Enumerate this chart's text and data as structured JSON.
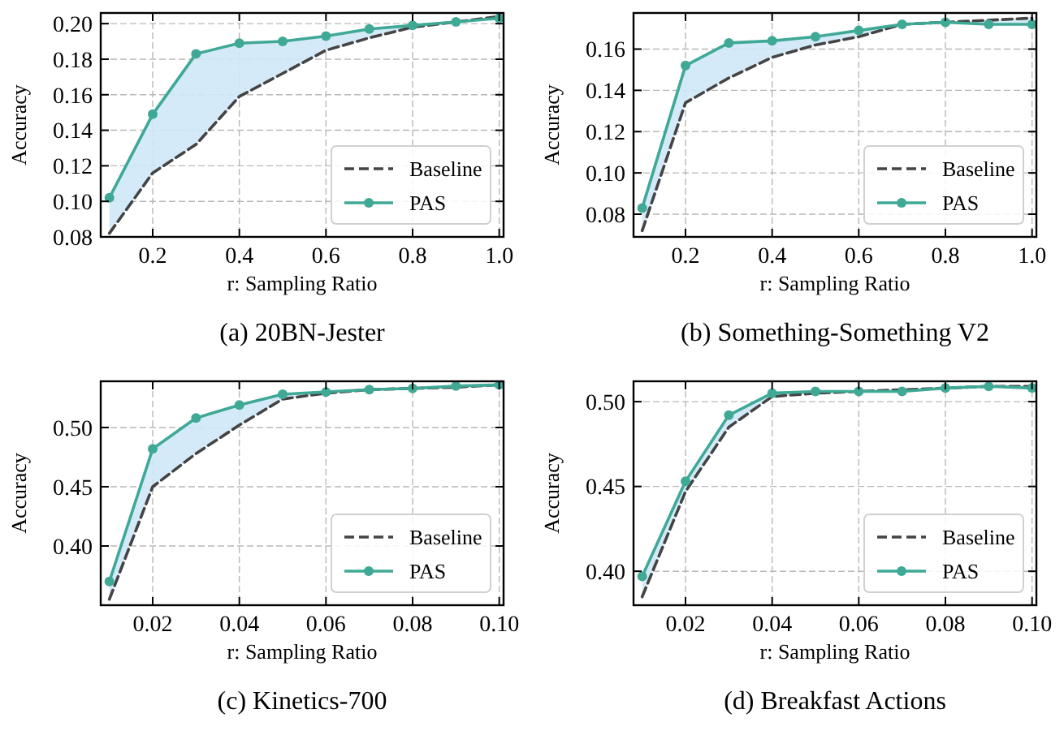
{
  "chart_data": [
    {
      "type": "line",
      "title": "(a) 20BN-Jester",
      "xlabel": "r: Sampling Ratio",
      "ylabel": "Accuracy",
      "x": [
        0.1,
        0.2,
        0.3,
        0.4,
        0.5,
        0.6,
        0.7,
        0.8,
        0.9,
        1.0
      ],
      "xlim": [
        0.08,
        1.01
      ],
      "xticks": [
        {
          "value": 0.2,
          "label": "0.2"
        },
        {
          "value": 0.4,
          "label": "0.4"
        },
        {
          "value": 0.6,
          "label": "0.6"
        },
        {
          "value": 0.8,
          "label": "0.8"
        },
        {
          "value": 1.0,
          "label": "1.0"
        }
      ],
      "ylim": [
        0.08,
        0.206
      ],
      "yticks": [
        {
          "value": 0.08,
          "label": "0.08"
        },
        {
          "value": 0.1,
          "label": "0.10"
        },
        {
          "value": 0.12,
          "label": "0.12"
        },
        {
          "value": 0.14,
          "label": "0.14"
        },
        {
          "value": 0.16,
          "label": "0.16"
        },
        {
          "value": 0.18,
          "label": "0.18"
        },
        {
          "value": 0.2,
          "label": "0.20"
        }
      ],
      "grid": true,
      "legend": "bottom right",
      "series": [
        {
          "name": "Baseline",
          "color": "#444444",
          "line_style": "dashed",
          "marker": "none",
          "values": [
            0.082,
            0.116,
            0.132,
            0.159,
            0.172,
            0.185,
            0.192,
            0.198,
            0.201,
            0.204
          ]
        },
        {
          "name": "PAS",
          "color": "#3fa996",
          "line_style": "solid",
          "marker": "circle",
          "values": [
            0.102,
            0.149,
            0.183,
            0.189,
            0.19,
            0.193,
            0.197,
            0.199,
            0.201,
            0.203
          ],
          "lower": [
            0.082,
            0.116,
            0.132,
            0.159,
            0.172,
            0.185,
            0.192,
            0.198,
            0.201,
            0.204
          ],
          "upper": [
            0.102,
            0.149,
            0.183,
            0.189,
            0.19,
            0.193,
            0.197,
            0.199,
            0.201,
            0.203
          ]
        }
      ]
    },
    {
      "type": "line",
      "title": "(b) Something-Something V2",
      "xlabel": "r: Sampling Ratio",
      "ylabel": "Accuracy",
      "x": [
        0.1,
        0.2,
        0.3,
        0.4,
        0.5,
        0.6,
        0.7,
        0.8,
        0.9,
        1.0
      ],
      "xlim": [
        0.08,
        1.01
      ],
      "xticks": [
        {
          "value": 0.2,
          "label": "0.2"
        },
        {
          "value": 0.4,
          "label": "0.4"
        },
        {
          "value": 0.6,
          "label": "0.6"
        },
        {
          "value": 0.8,
          "label": "0.8"
        },
        {
          "value": 1.0,
          "label": "1.0"
        }
      ],
      "ylim": [
        0.069,
        0.1775
      ],
      "yticks": [
        {
          "value": 0.08,
          "label": "0.08"
        },
        {
          "value": 0.1,
          "label": "0.10"
        },
        {
          "value": 0.12,
          "label": "0.12"
        },
        {
          "value": 0.14,
          "label": "0.14"
        },
        {
          "value": 0.16,
          "label": "0.16"
        }
      ],
      "grid": true,
      "legend": "bottom right",
      "series": [
        {
          "name": "Baseline",
          "color": "#444444",
          "line_style": "dashed",
          "marker": "none",
          "values": [
            0.072,
            0.134,
            0.146,
            0.156,
            0.162,
            0.166,
            0.172,
            0.173,
            0.174,
            0.175
          ]
        },
        {
          "name": "PAS",
          "color": "#3fa996",
          "line_style": "solid",
          "marker": "circle",
          "values": [
            0.083,
            0.152,
            0.163,
            0.164,
            0.166,
            0.169,
            0.172,
            0.173,
            0.172,
            0.172
          ],
          "lower": [
            0.072,
            0.134,
            0.146,
            0.156,
            0.162,
            0.166,
            0.172,
            0.173,
            0.174,
            0.175
          ],
          "upper": [
            0.083,
            0.152,
            0.163,
            0.164,
            0.166,
            0.169,
            0.172,
            0.173,
            0.172,
            0.172
          ]
        }
      ]
    },
    {
      "type": "line",
      "title": "(c) Kinetics-700",
      "xlabel": "r: Sampling Ratio",
      "ylabel": "Accuracy",
      "x": [
        0.01,
        0.02,
        0.03,
        0.04,
        0.05,
        0.06,
        0.07,
        0.08,
        0.09,
        0.1
      ],
      "xlim": [
        0.008,
        0.101
      ],
      "xticks": [
        {
          "value": 0.02,
          "label": "0.02"
        },
        {
          "value": 0.04,
          "label": "0.04"
        },
        {
          "value": 0.06,
          "label": "0.06"
        },
        {
          "value": 0.08,
          "label": "0.08"
        },
        {
          "value": 0.1,
          "label": "0.10"
        }
      ],
      "ylim": [
        0.35,
        0.539
      ],
      "yticks": [
        {
          "value": 0.4,
          "label": "0.40"
        },
        {
          "value": 0.45,
          "label": "0.45"
        },
        {
          "value": 0.5,
          "label": "0.50"
        }
      ],
      "grid": true,
      "legend": "bottom right",
      "series": [
        {
          "name": "Baseline",
          "color": "#444444",
          "line_style": "dashed",
          "marker": "none",
          "values": [
            0.355,
            0.45,
            0.478,
            0.502,
            0.524,
            0.529,
            0.532,
            0.533,
            0.534,
            0.536
          ]
        },
        {
          "name": "PAS",
          "color": "#3fa996",
          "line_style": "solid",
          "marker": "circle",
          "values": [
            0.37,
            0.482,
            0.508,
            0.519,
            0.528,
            0.53,
            0.532,
            0.533,
            0.535,
            0.536
          ],
          "lower": [
            0.355,
            0.45,
            0.478,
            0.502,
            0.524,
            0.529,
            0.532,
            0.533,
            0.534,
            0.536
          ],
          "upper": [
            0.37,
            0.482,
            0.508,
            0.519,
            0.528,
            0.53,
            0.532,
            0.533,
            0.535,
            0.536
          ]
        }
      ]
    },
    {
      "type": "line",
      "title": "(d) Breakfast Actions",
      "xlabel": "r: Sampling Ratio",
      "ylabel": "Accuracy",
      "x": [
        0.01,
        0.02,
        0.03,
        0.04,
        0.05,
        0.06,
        0.07,
        0.08,
        0.09,
        0.1
      ],
      "xlim": [
        0.008,
        0.101
      ],
      "xticks": [
        {
          "value": 0.02,
          "label": "0.02"
        },
        {
          "value": 0.04,
          "label": "0.04"
        },
        {
          "value": 0.06,
          "label": "0.06"
        },
        {
          "value": 0.08,
          "label": "0.08"
        },
        {
          "value": 0.1,
          "label": "0.10"
        }
      ],
      "ylim": [
        0.38,
        0.512
      ],
      "yticks": [
        {
          "value": 0.4,
          "label": "0.40"
        },
        {
          "value": 0.45,
          "label": "0.45"
        },
        {
          "value": 0.5,
          "label": "0.50"
        }
      ],
      "grid": true,
      "legend": "bottom right",
      "series": [
        {
          "name": "Baseline",
          "color": "#444444",
          "line_style": "dashed",
          "marker": "none",
          "values": [
            0.385,
            0.447,
            0.485,
            0.503,
            0.505,
            0.506,
            0.507,
            0.508,
            0.509,
            0.509
          ]
        },
        {
          "name": "PAS",
          "color": "#3fa996",
          "line_style": "solid",
          "marker": "circle",
          "values": [
            0.397,
            0.453,
            0.492,
            0.505,
            0.506,
            0.506,
            0.506,
            0.508,
            0.509,
            0.508
          ],
          "lower": [
            0.385,
            0.447,
            0.485,
            0.503,
            0.505,
            0.506,
            0.507,
            0.508,
            0.509,
            0.509
          ],
          "upper": [
            0.397,
            0.453,
            0.492,
            0.505,
            0.506,
            0.506,
            0.506,
            0.508,
            0.509,
            0.508
          ]
        }
      ]
    }
  ]
}
